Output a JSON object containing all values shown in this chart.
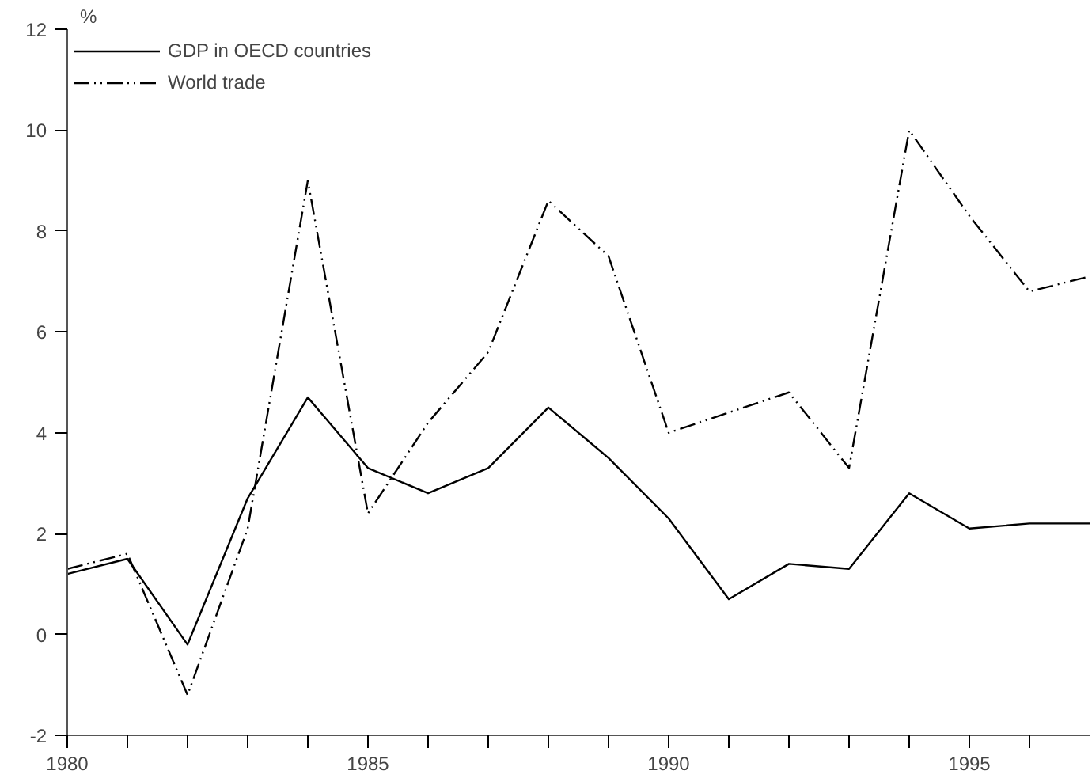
{
  "chart_data": {
    "type": "line",
    "ylabel": "%",
    "x": [
      1980,
      1981,
      1982,
      1983,
      1984,
      1985,
      1986,
      1987,
      1988,
      1989,
      1990,
      1991,
      1992,
      1993,
      1994,
      1995,
      1996,
      1997
    ],
    "series": [
      {
        "name": "GDP in OECD countries",
        "color": "#000000",
        "line_style": "solid",
        "values": [
          1.2,
          1.5,
          -0.2,
          2.7,
          4.7,
          3.3,
          2.8,
          3.3,
          4.5,
          3.5,
          2.3,
          0.7,
          1.4,
          1.3,
          2.8,
          2.1,
          2.2,
          2.2
        ]
      },
      {
        "name": "World trade",
        "color": "#000000",
        "line_style": "dashdot",
        "values": [
          1.3,
          1.6,
          -1.2,
          2.1,
          9.0,
          2.4,
          4.2,
          5.6,
          8.6,
          7.5,
          4.0,
          4.4,
          4.8,
          3.3,
          10.0,
          8.3,
          6.8,
          7.1
        ]
      }
    ],
    "xlim": [
      1980,
      1997
    ],
    "xticks": [
      1980,
      {
        "value": 1981,
        "label": null
      },
      {
        "value": 1982,
        "label": null
      },
      {
        "value": 1983,
        "label": null
      },
      {
        "value": 1984,
        "label": null
      },
      1985,
      {
        "value": 1986,
        "label": null
      },
      {
        "value": 1987,
        "label": null
      },
      {
        "value": 1988,
        "label": null
      },
      {
        "value": 1989,
        "label": null
      },
      1990,
      {
        "value": 1991,
        "label": null
      },
      {
        "value": 1992,
        "label": null
      },
      {
        "value": 1993,
        "label": null
      },
      {
        "value": 1994,
        "label": null
      },
      1995,
      {
        "value": 1996,
        "label": null
      }
    ],
    "ylim": [
      -2,
      12
    ],
    "yticks": [
      -2,
      0,
      2,
      4,
      6,
      8,
      10,
      12
    ],
    "grid": false,
    "legend": "top left",
    "marker": "none"
  }
}
